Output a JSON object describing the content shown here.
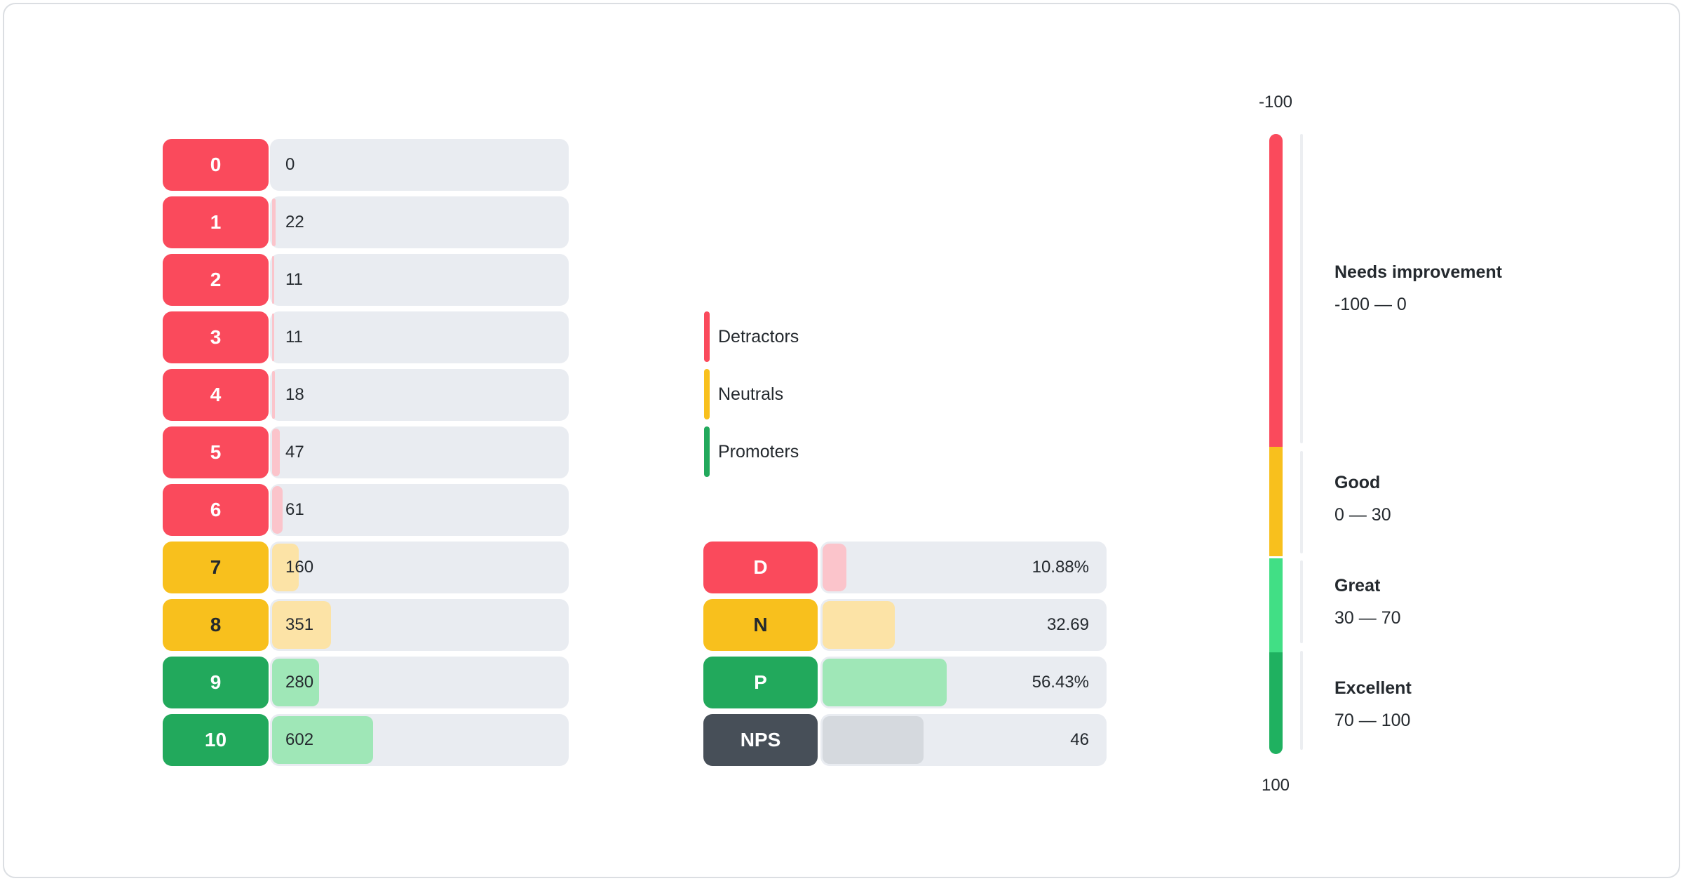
{
  "colors": {
    "detractor": "#FA4A5C",
    "detractor_light": "#FBC4CB",
    "neutral": "#F8C01D",
    "neutral_light": "#FCE3A6",
    "promoter": "#22A95C",
    "promoter_bright": "#41DF85",
    "promoter_deep": "#1FB160",
    "promoter_light": "#9FE7B7",
    "nps": "#474F58",
    "nps_light": "#D5D9DE",
    "track": "#E9ECF1",
    "axis_line": "#ECEEF1",
    "text": "#24292E",
    "text_on_dark": "#FFFFFF"
  },
  "legend": {
    "items": [
      {
        "label": "Detractors",
        "color_key": "detractor"
      },
      {
        "label": "Neutrals",
        "color_key": "neutral"
      },
      {
        "label": "Promoters",
        "color_key": "promoter"
      }
    ]
  },
  "chart_data": [
    {
      "id": "score_distribution",
      "type": "bar",
      "orientation": "horizontal",
      "categories": [
        "0",
        "1",
        "2",
        "3",
        "4",
        "5",
        "6",
        "7",
        "8",
        "9",
        "10"
      ],
      "values": [
        0,
        22,
        11,
        11,
        18,
        47,
        61,
        160,
        351,
        280,
        602
      ],
      "value_labels": [
        "0",
        "22",
        "11",
        "11",
        "18",
        "47",
        "61",
        "160",
        "351",
        "280",
        "602"
      ],
      "groups": [
        "detractor",
        "detractor",
        "detractor",
        "detractor",
        "detractor",
        "detractor",
        "detractor",
        "neutral",
        "neutral",
        "promoter",
        "promoter"
      ],
      "xlim": [
        0,
        1786
      ],
      "grid": false
    },
    {
      "id": "nps_summary",
      "type": "bar",
      "orientation": "horizontal",
      "categories": [
        "D",
        "N",
        "P",
        "NPS"
      ],
      "values": [
        10.88,
        32.69,
        56.43,
        46
      ],
      "value_labels": [
        "10.88%",
        "32.69",
        "56.43%",
        "46"
      ],
      "groups": [
        "detractor",
        "neutral",
        "promoter",
        "nps"
      ],
      "xlim": [
        0,
        130
      ],
      "grid": false
    },
    {
      "id": "nps_scale",
      "type": "gauge",
      "orientation": "vertical",
      "axis": {
        "top": "-100",
        "bottom": "100"
      },
      "segments": [
        {
          "title": "Needs improvement",
          "range_label": "-100 — 0",
          "from": -100,
          "to": 0,
          "color_key": "detractor"
        },
        {
          "title": "Good",
          "range_label": "0 — 30",
          "from": 0,
          "to": 30,
          "color_key": "neutral"
        },
        {
          "title": "Great",
          "range_label": "30 — 70",
          "from": 30,
          "to": 70,
          "color_key": "promoter_bright"
        },
        {
          "title": "Excellent",
          "range_label": "70 — 100",
          "from": 70,
          "to": 100,
          "color_key": "promoter_deep"
        }
      ]
    }
  ]
}
